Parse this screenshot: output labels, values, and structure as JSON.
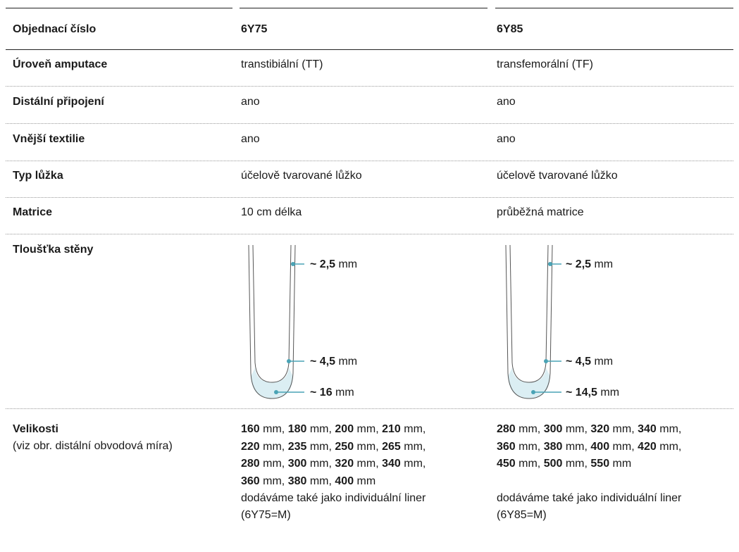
{
  "table": {
    "header": [
      "Objednací číslo",
      "6Y75",
      "6Y85"
    ],
    "rows": [
      [
        "Úroveň amputace",
        "transtibiální (TT)",
        "transfemorální (TF)"
      ],
      [
        "Distální připojení",
        "ano",
        "ano"
      ],
      [
        "Vnější textilie",
        "ano",
        "ano"
      ],
      [
        "Typ lůžka",
        "účelově tvarované lůžko",
        "účelově tvarované lůžko"
      ],
      [
        "Matrice",
        "10 cm délka",
        "průběžná matrice"
      ]
    ],
    "wall_thickness": {
      "label": "Tloušťka stěny",
      "columns": [
        [
          {
            "bold": "~ 2,5",
            "text": " mm"
          },
          {
            "bold": "~ 4,5",
            "text": " mm"
          },
          {
            "bold": "~ 16",
            "text": " mm"
          }
        ],
        [
          {
            "bold": "~ 2,5",
            "text": " mm"
          },
          {
            "bold": "~ 4,5",
            "text": " mm"
          },
          {
            "bold": "~ 14,5",
            "text": " mm"
          }
        ]
      ]
    },
    "sizes": {
      "label": "Velikosti",
      "note": "(viz obr. distální obvodová míra)",
      "columns": [
        {
          "lines": [
            [
              {
                "bold": "160",
                "text": " mm, "
              },
              {
                "bold": "180",
                "text": " mm, "
              },
              {
                "bold": "200",
                "text": " mm, "
              },
              {
                "bold": "210",
                "text": " mm,"
              }
            ],
            [
              {
                "bold": "220",
                "text": " mm, "
              },
              {
                "bold": "235",
                "text": " mm, "
              },
              {
                "bold": "250",
                "text": " mm, "
              },
              {
                "bold": "265",
                "text": " mm,"
              }
            ],
            [
              {
                "bold": "280",
                "text": " mm, "
              },
              {
                "bold": "300",
                "text": " mm, "
              },
              {
                "bold": "320",
                "text": " mm, "
              },
              {
                "bold": "340",
                "text": " mm,"
              }
            ],
            [
              {
                "bold": "360",
                "text": " mm, "
              },
              {
                "bold": "380",
                "text": " mm, "
              },
              {
                "bold": "400",
                "text": " mm"
              }
            ]
          ],
          "extra": "dodáváme také jako individuální liner",
          "code": "(6Y75=M)"
        },
        {
          "lines": [
            [
              {
                "bold": "280",
                "text": " mm, "
              },
              {
                "bold": "300",
                "text": " mm, "
              },
              {
                "bold": "320",
                "text": " mm, "
              },
              {
                "bold": "340",
                "text": " mm,"
              }
            ],
            [
              {
                "bold": "360",
                "text": " mm, "
              },
              {
                "bold": "380",
                "text": " mm, "
              },
              {
                "bold": "400",
                "text": " mm, "
              },
              {
                "bold": "420",
                "text": " mm,"
              }
            ],
            [
              {
                "bold": "450",
                "text": " mm, "
              },
              {
                "bold": "500",
                "text": " mm, "
              },
              {
                "bold": "550",
                "text": " mm"
              }
            ]
          ],
          "extra": "dodáváme také jako individuální liner",
          "code": "(6Y85=M)"
        }
      ]
    }
  }
}
